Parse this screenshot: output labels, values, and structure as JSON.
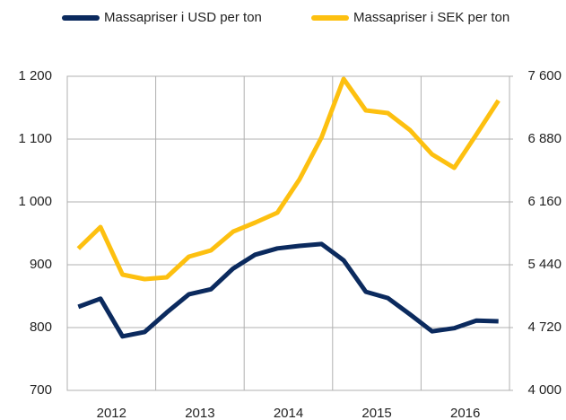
{
  "chart_data": {
    "type": "line",
    "categories": [
      null,
      "2012",
      null,
      null,
      null,
      "2013",
      null,
      null,
      null,
      "2014",
      null,
      null,
      null,
      "2015",
      null,
      null,
      null,
      "2016",
      null,
      null
    ],
    "series": [
      {
        "name": "Massapriser i USD per ton",
        "color": "#0b2a5e",
        "axis": "y",
        "values": [
          833,
          846,
          786,
          793,
          824,
          853,
          861,
          894,
          916,
          926,
          930,
          933,
          907,
          857,
          847,
          821,
          794,
          799,
          811,
          810
        ]
      },
      {
        "name": "Massapriser i SEK per ton",
        "color": "#fdc010",
        "axis": "y2",
        "values": [
          5625,
          5872,
          5327,
          5275,
          5296,
          5533,
          5605,
          5820,
          5923,
          6037,
          6417,
          6901,
          7569,
          7209,
          7178,
          6983,
          6705,
          6551,
          6931,
          7322
        ]
      }
    ],
    "ylim": [
      700,
      1200
    ],
    "yticks": [
      700,
      800,
      900,
      {
        "value": 1000,
        "label": "1 000"
      },
      {
        "value": 1100,
        "label": "1 100"
      },
      {
        "value": 1200,
        "label": "1 200"
      }
    ],
    "y2lim": [
      4000,
      7600
    ],
    "y2ticks": [
      {
        "value": 4000,
        "label": "4 000"
      },
      {
        "value": 4720,
        "label": "4 720"
      },
      {
        "value": 5440,
        "label": "5 440"
      },
      {
        "value": 6160,
        "label": "6 160"
      },
      {
        "value": 6880,
        "label": "6 880"
      },
      {
        "value": 7600,
        "label": "7 600"
      }
    ],
    "grid": true,
    "legend": "top"
  }
}
